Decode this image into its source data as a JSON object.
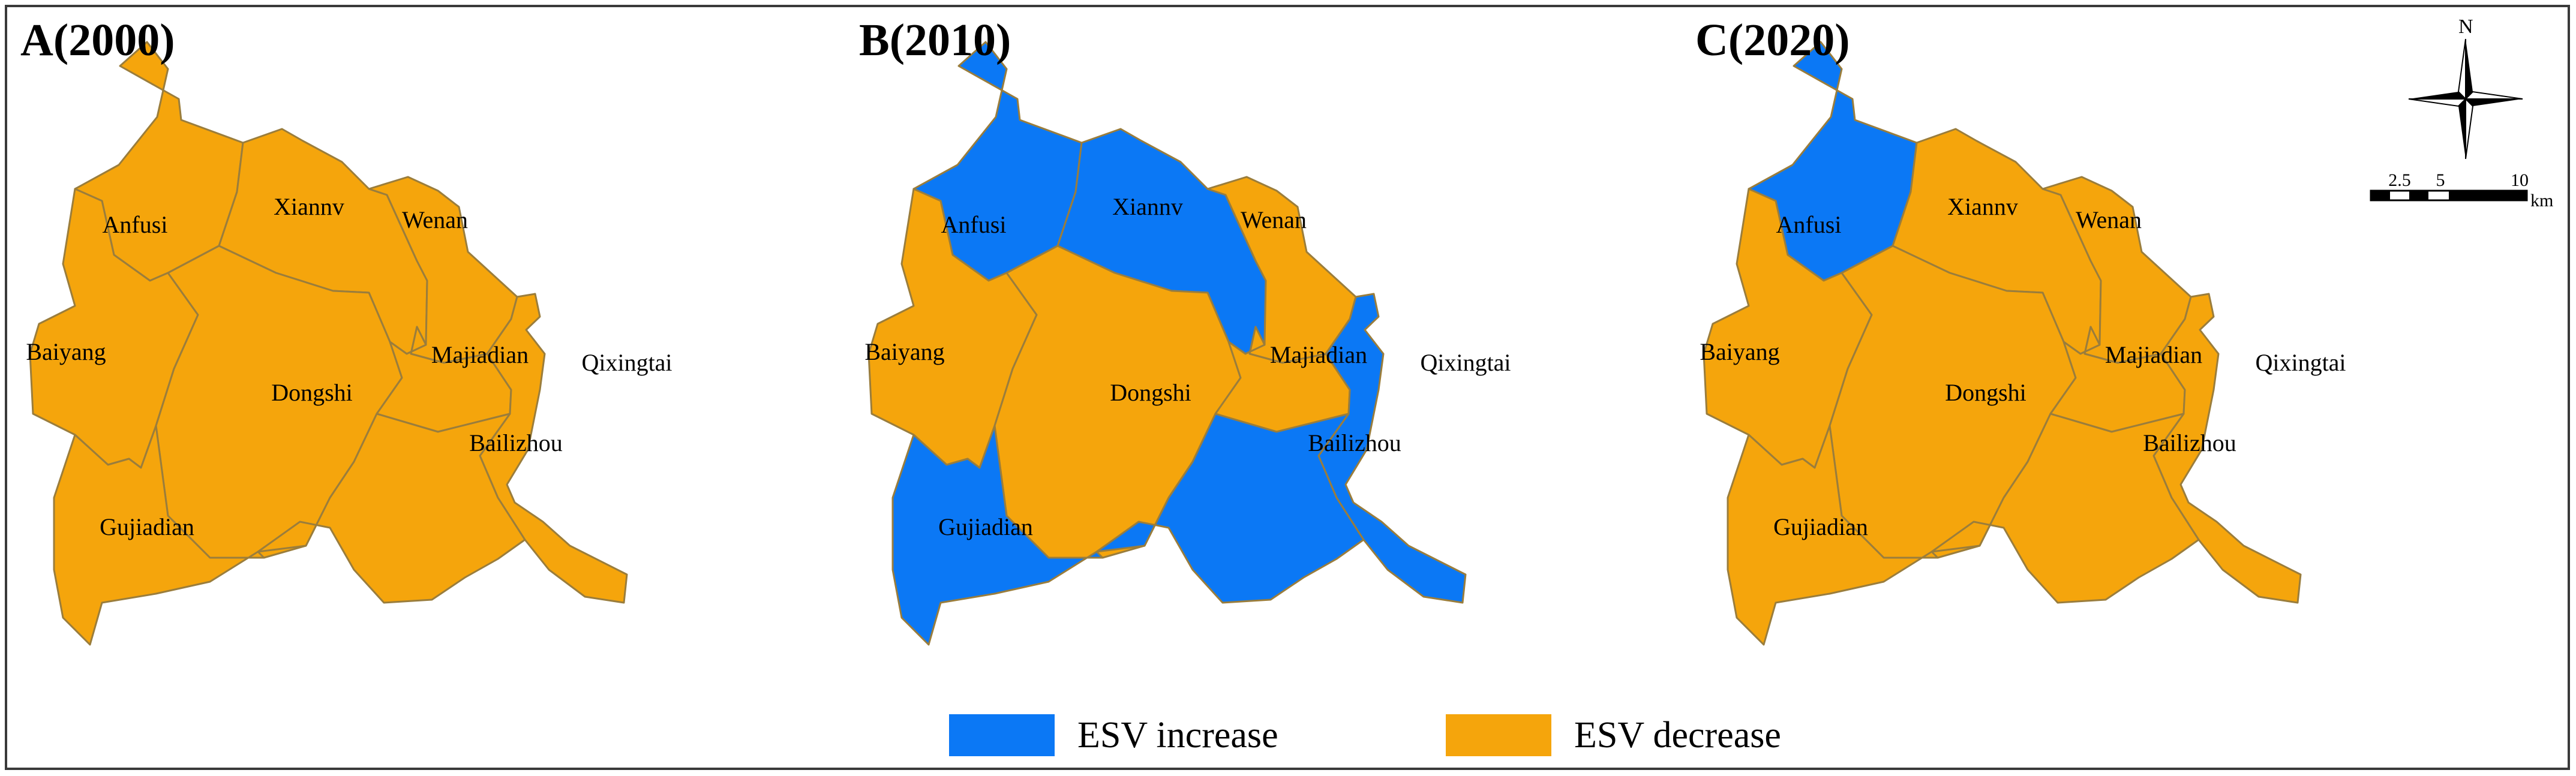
{
  "panels": [
    {
      "title": "A(2000)",
      "fills": {
        "Anfusi": "decrease",
        "Xiannv": "decrease",
        "Wenan": "decrease",
        "Baiyang": "decrease",
        "Dongshi": "decrease",
        "Majiadian": "decrease",
        "Qixingtai": "decrease",
        "Bailizhou": "decrease",
        "Gujiadian": "decrease"
      }
    },
    {
      "title": "B(2010)",
      "fills": {
        "Anfusi": "increase",
        "Xiannv": "increase",
        "Wenan": "decrease",
        "Baiyang": "decrease",
        "Dongshi": "decrease",
        "Majiadian": "decrease",
        "Qixingtai": "increase",
        "Bailizhou": "increase",
        "Gujiadian": "increase"
      }
    },
    {
      "title": "C(2020)",
      "fills": {
        "Anfusi": "increase",
        "Xiannv": "decrease",
        "Wenan": "decrease",
        "Baiyang": "decrease",
        "Dongshi": "decrease",
        "Majiadian": "decrease",
        "Qixingtai": "decrease",
        "Bailizhou": "decrease",
        "Gujiadian": "decrease"
      }
    }
  ],
  "district_labels": {
    "Anfusi": "Anfusi",
    "Xiannv": "Xiannv",
    "Wenan": "Wenan",
    "Baiyang": "Baiyang",
    "Dongshi": "Dongshi",
    "Majiadian": "Majiadian",
    "Qixingtai": "Qixingtai",
    "Bailizhou": "Bailizhou",
    "Gujiadian": "Gujiadian"
  },
  "legend": {
    "increase_label": "ESV increase",
    "decrease_label": "ESV decrease"
  },
  "colors": {
    "increase": "#0b78f5",
    "decrease": "#f5a50c"
  },
  "north_arrow": {
    "label": "N"
  },
  "scale_bar": {
    "ticks": [
      "2.5",
      "5",
      "10"
    ],
    "unit": "km"
  }
}
